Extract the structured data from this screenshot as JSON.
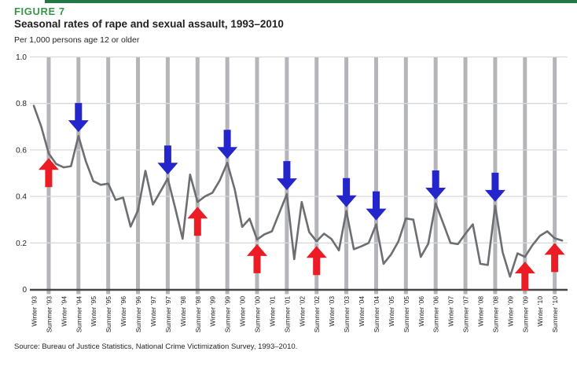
{
  "page": {
    "figure_label": "FIGURE 7",
    "title": "Seasonal rates of rape and sexual assault, 1993–2010",
    "units_label": "Per 1,000 persons age 12 or older",
    "source": "Source: Bureau of Justice Statistics, National Crime Victimization Survey, 1993–2010."
  },
  "colors": {
    "header_rule_green": "#267747",
    "figure_label_green": "#38964a",
    "line_gray": "#6d6e71",
    "summer_band_gray": "#b3b5b8",
    "gridline_gray": "#d9dadb",
    "axis_dark": "#464648",
    "text_dark": "#231f20",
    "arrow_red": "#ed1c24",
    "arrow_blue": "#2426cc"
  },
  "chart_data": {
    "type": "line",
    "title": "Seasonal rates of rape and sexual assault, 1993–2010",
    "unit": "Per 1,000 persons age 12 or older",
    "ylim": [
      0,
      1
    ],
    "y_tick_labels": [
      "1.0",
      "0.8",
      "0.6",
      "0.4",
      "0.2",
      "0"
    ],
    "grid": "horizontal",
    "seasons_per_year": 4,
    "season_order": [
      "Winter",
      "Spring",
      "Summer",
      "Fall"
    ],
    "start": "Winter 1993",
    "end": "Fall 2010",
    "summer_columns_highlighted": true,
    "series": [
      {
        "name": "Rape and sexual assault rate per 1,000 persons age 12 or older",
        "values": [
          0.79,
          0.7,
          0.585,
          0.54,
          0.525,
          0.53,
          0.66,
          0.55,
          0.466,
          0.45,
          0.455,
          0.385,
          0.395,
          0.27,
          0.34,
          0.51,
          0.365,
          0.42,
          0.477,
          0.35,
          0.218,
          0.494,
          0.376,
          0.4,
          0.416,
          0.47,
          0.545,
          0.43,
          0.269,
          0.304,
          0.215,
          0.237,
          0.25,
          0.33,
          0.41,
          0.13,
          0.376,
          0.247,
          0.207,
          0.24,
          0.217,
          0.168,
          0.337,
          0.173,
          0.185,
          0.2,
          0.28,
          0.11,
          0.15,
          0.207,
          0.305,
          0.3,
          0.14,
          0.196,
          0.37,
          0.285,
          0.2,
          0.195,
          0.24,
          0.28,
          0.11,
          0.105,
          0.36,
          0.16,
          0.055,
          0.155,
          0.14,
          0.19,
          0.23,
          0.25,
          0.22,
          0.21
        ]
      }
    ],
    "x_tick_labels": [
      "Winter ’93",
      "Summer ’93",
      "Winter ’94",
      "Summer ’94",
      "Winter ’95",
      "Summer ’95",
      "Winter ’96",
      "Summer ’96",
      "Winter ’97",
      "Summer ’97",
      "Winter ’98",
      "Summer ’98",
      "Winter ’99",
      "Summer ’99",
      "Winter ’00",
      "Summer ’00",
      "Winter ’01",
      "Summer ’01",
      "Winter ’02",
      "Summer ’02",
      "Winter ’03",
      "Summer ’03",
      "Winter ’04",
      "Summer ’04",
      "Winter ’05",
      "Summer ’05",
      "Winter ’06",
      "Summer ’06",
      "Winter ’07",
      "Summer ’07",
      "Winter ’08",
      "Summer ’08",
      "Winter ’09",
      "Summer ’09",
      "Winter ’10",
      "Summer ’10"
    ],
    "arrows": [
      {
        "at": "Summer ’93",
        "value_index": 2,
        "direction": "up",
        "color": "#ed1c24"
      },
      {
        "at": "Summer ’94",
        "value_index": 6,
        "direction": "down",
        "color": "#2426cc"
      },
      {
        "at": "Summer ’97",
        "value_index": 18,
        "direction": "down",
        "color": "#2426cc"
      },
      {
        "at": "Summer ’98",
        "value_index": 22,
        "direction": "up",
        "color": "#ed1c24"
      },
      {
        "at": "Summer ’99",
        "value_index": 26,
        "direction": "down",
        "color": "#2426cc"
      },
      {
        "at": "Summer ’00",
        "value_index": 30,
        "direction": "up",
        "color": "#ed1c24"
      },
      {
        "at": "Summer ’01",
        "value_index": 34,
        "direction": "down",
        "color": "#2426cc"
      },
      {
        "at": "Summer ’02",
        "value_index": 38,
        "direction": "up",
        "color": "#ed1c24"
      },
      {
        "at": "Summer ’03",
        "value_index": 42,
        "direction": "down",
        "color": "#2426cc"
      },
      {
        "at": "Summer ’04",
        "value_index": 46,
        "direction": "down",
        "color": "#2426cc"
      },
      {
        "at": "Summer ’06",
        "value_index": 54,
        "direction": "down",
        "color": "#2426cc"
      },
      {
        "at": "Summer ’08",
        "value_index": 62,
        "direction": "down",
        "color": "#2426cc"
      },
      {
        "at": "Summer ’09",
        "value_index": 66,
        "direction": "up",
        "color": "#ed1c24"
      },
      {
        "at": "Summer ’10",
        "value_index": 70,
        "direction": "up",
        "color": "#ed1c24"
      }
    ]
  }
}
